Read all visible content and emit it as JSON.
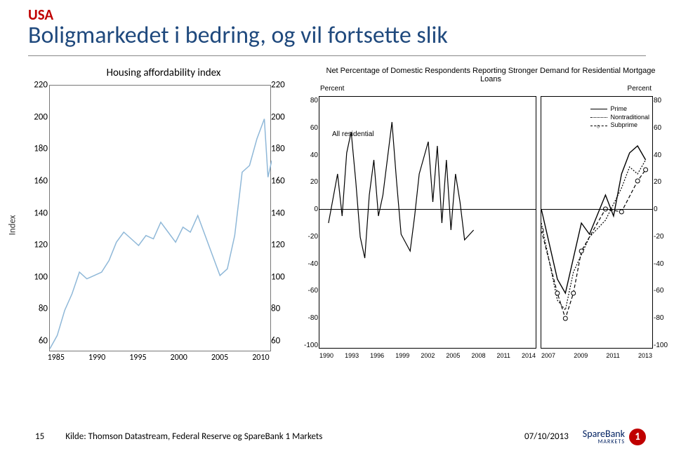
{
  "header": {
    "country": "USA",
    "title": "Boligmarkedet i bedring, og vil fortsette slik",
    "country_color": "#c00000",
    "title_color": "#1f497d"
  },
  "left_chart": {
    "title": "Housing affordability index",
    "y_label": "Index",
    "type": "line",
    "line_color": "#8fb8d8",
    "border_color": "#777777",
    "ylim": [
      60,
      220
    ],
    "ytick_step": 20,
    "yticks": [
      "220",
      "200",
      "180",
      "160",
      "140",
      "120",
      "100",
      "80",
      "60"
    ],
    "xticks": [
      "1985",
      "1990",
      "1995",
      "2000",
      "2005",
      "2010"
    ],
    "x_range": [
      1983,
      2013
    ],
    "series": [
      [
        1983,
        62
      ],
      [
        1984,
        70
      ],
      [
        1985,
        85
      ],
      [
        1986,
        95
      ],
      [
        1987,
        108
      ],
      [
        1988,
        104
      ],
      [
        1989,
        106
      ],
      [
        1990,
        108
      ],
      [
        1991,
        115
      ],
      [
        1992,
        126
      ],
      [
        1993,
        132
      ],
      [
        1994,
        128
      ],
      [
        1995,
        124
      ],
      [
        1996,
        130
      ],
      [
        1997,
        128
      ],
      [
        1998,
        138
      ],
      [
        1999,
        132
      ],
      [
        2000,
        126
      ],
      [
        2001,
        135
      ],
      [
        2002,
        132
      ],
      [
        2003,
        142
      ],
      [
        2004,
        130
      ],
      [
        2005,
        118
      ],
      [
        2006,
        106
      ],
      [
        2007,
        110
      ],
      [
        2008,
        130
      ],
      [
        2009,
        168
      ],
      [
        2010,
        172
      ],
      [
        2011,
        188
      ],
      [
        2012,
        200
      ],
      [
        2012.5,
        165
      ],
      [
        2013,
        175
      ]
    ]
  },
  "right_chart": {
    "title": "Net Percentage of Domestic Respondents Reporting Stronger Demand for Residential Mortgage Loans",
    "y_unit": "Percent",
    "ylim": [
      -100,
      80
    ],
    "ytick_step": 20,
    "yticks": [
      "80",
      "60",
      "40",
      "20",
      "0",
      "-20",
      "-40",
      "-60",
      "-80",
      "-100"
    ],
    "left_sub": {
      "xticks": [
        "1990",
        "1993",
        "1996",
        "1999",
        "2002",
        "2005",
        "2008",
        "2011",
        "2014"
      ],
      "label": "All residential",
      "x_range": [
        1990,
        2014
      ],
      "series": [
        [
          1991,
          -10
        ],
        [
          1992,
          25
        ],
        [
          1992.5,
          -5
        ],
        [
          1993,
          40
        ],
        [
          1993.5,
          55
        ],
        [
          1994,
          20
        ],
        [
          1994.5,
          -20
        ],
        [
          1995,
          -35
        ],
        [
          1995.5,
          10
        ],
        [
          1996,
          35
        ],
        [
          1996.5,
          -5
        ],
        [
          1997,
          10
        ],
        [
          1998,
          62
        ],
        [
          1998.5,
          20
        ],
        [
          1999,
          -18
        ],
        [
          2000,
          -30
        ],
        [
          2000.5,
          -5
        ],
        [
          2001,
          25
        ],
        [
          2002,
          48
        ],
        [
          2002.5,
          5
        ],
        [
          2003,
          45
        ],
        [
          2003.5,
          -10
        ],
        [
          2004,
          35
        ],
        [
          2004.5,
          -15
        ],
        [
          2005,
          25
        ],
        [
          2005.5,
          5
        ],
        [
          2006,
          -22
        ],
        [
          2007,
          -15
        ]
      ]
    },
    "right_sub": {
      "xticks": [
        "2007",
        "2009",
        "2011",
        "2013"
      ],
      "x_range": [
        2007,
        2014
      ],
      "legend": [
        "Prime",
        "Nontraditional",
        "Subprime"
      ],
      "prime": [
        [
          2007,
          0
        ],
        [
          2008,
          -50
        ],
        [
          2008.5,
          -60
        ],
        [
          2009,
          -35
        ],
        [
          2009.5,
          -10
        ],
        [
          2010,
          -18
        ],
        [
          2011,
          10
        ],
        [
          2011.5,
          -5
        ],
        [
          2012,
          25
        ],
        [
          2012.5,
          40
        ],
        [
          2013,
          45
        ],
        [
          2013.5,
          35
        ]
      ],
      "nontraditional": [
        [
          2007,
          -10
        ],
        [
          2008,
          -65
        ],
        [
          2008.5,
          -72
        ],
        [
          2009,
          -45
        ],
        [
          2010,
          -20
        ],
        [
          2011,
          -8
        ],
        [
          2012,
          15
        ],
        [
          2012.5,
          30
        ],
        [
          2013,
          25
        ],
        [
          2013.5,
          35
        ]
      ],
      "subprime": [
        [
          2007,
          -15
        ],
        [
          2008,
          -60
        ],
        [
          2008.5,
          -78
        ],
        [
          2009,
          -60
        ],
        [
          2009.5,
          -30
        ],
        [
          2011,
          0
        ],
        [
          2012,
          -2
        ],
        [
          2013,
          20
        ],
        [
          2013.5,
          28
        ]
      ]
    }
  },
  "footer": {
    "page": "15",
    "source": "Kilde: Thomson Datastream, Federal Reserve og SpareBank 1 Markets",
    "date": "07/10/2013",
    "logo_text": "SpareBank",
    "logo_sub": "MARKETS",
    "logo_num": "1",
    "logo_text_color": "#002060",
    "logo_circle_bg": "#c00000",
    "logo_circle_fg": "#ffffff"
  }
}
